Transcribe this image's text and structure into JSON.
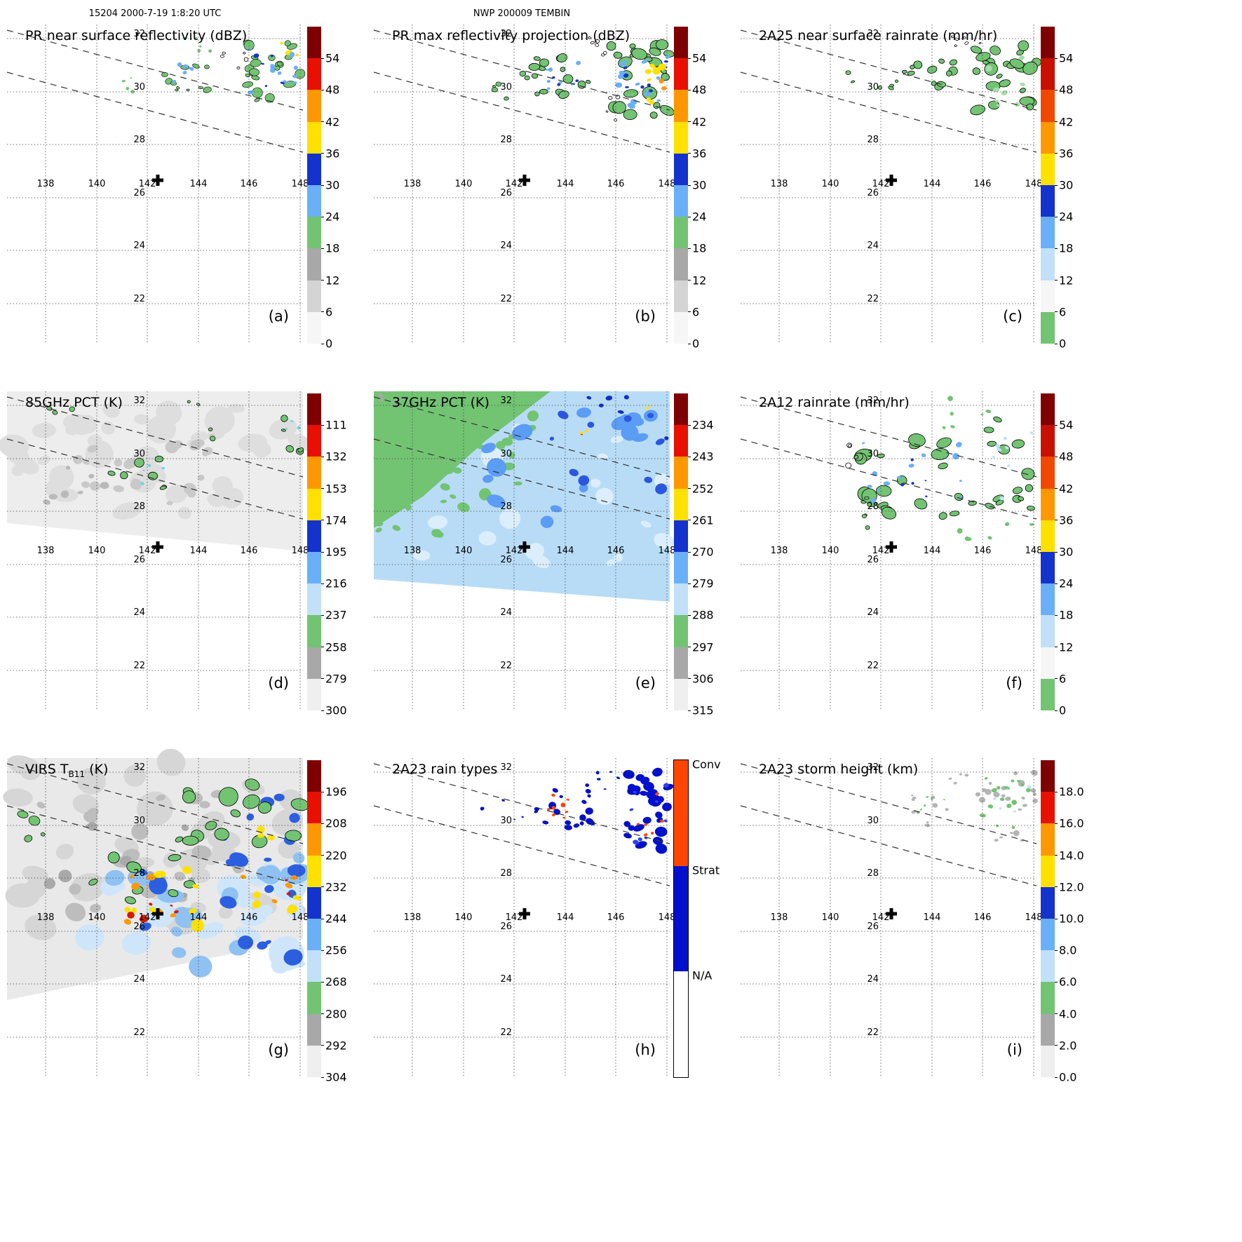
{
  "headers": {
    "left": "15204 2000-7-19 1:8:20 UTC",
    "center": "NWP 200009 TEMBIN"
  },
  "axis": {
    "lon_labels": [
      "138",
      "140",
      "142",
      "144",
      "146",
      "148"
    ],
    "lat_labels": [
      "32",
      "30",
      "28",
      "26",
      "24",
      "22"
    ]
  },
  "colors": {
    "green": "#72c472",
    "light_blue": "#6ab0f8",
    "pale_blue": "#c2e0f8",
    "blue": "#1433cc",
    "yellow": "#ffe100",
    "orange": "#ff9800",
    "red": "#e81000",
    "dark_red": "#7f0000",
    "gray": "#a8a8a8",
    "light_gray": "#d4d4d4",
    "conv": "#ff4500",
    "strat": "#0010cc"
  },
  "panels": [
    {
      "id": "a",
      "letter": "(a)",
      "title": "PR near surface reflectivity (dBZ)",
      "colorbar": {
        "ticks": [
          "54",
          "48",
          "42",
          "36",
          "30",
          "24",
          "18",
          "12",
          "6",
          "0"
        ],
        "colors": [
          "#7f0000",
          "#e81000",
          "#ff9800",
          "#ffe100",
          "#1433cc",
          "#6ab0f8",
          "#72c472",
          "#a8a8a8",
          "#d4d4d4",
          "#f6f6f6"
        ]
      }
    },
    {
      "id": "b",
      "letter": "(b)",
      "title": "PR max reflectivity projection (dBZ)",
      "colorbar": {
        "ticks": [
          "54",
          "48",
          "42",
          "36",
          "30",
          "24",
          "18",
          "12",
          "6",
          "0"
        ],
        "colors": [
          "#7f0000",
          "#e81000",
          "#ff9800",
          "#ffe100",
          "#1433cc",
          "#6ab0f8",
          "#72c472",
          "#a8a8a8",
          "#d4d4d4",
          "#f6f6f6"
        ]
      }
    },
    {
      "id": "c",
      "letter": "(c)",
      "title": "2A25 near surface rainrate (mm/hr)",
      "colorbar": {
        "ticks": [
          "54",
          "48",
          "42",
          "36",
          "30",
          "24",
          "18",
          "12",
          "6",
          "0"
        ],
        "colors": [
          "#7f0000",
          "#c81000",
          "#f04800",
          "#ff9800",
          "#ffe100",
          "#1433cc",
          "#6ab0f8",
          "#c2e0f8",
          "#f6f6f6",
          "#72c472"
        ]
      }
    },
    {
      "id": "d",
      "letter": "(d)",
      "title": "85GHz PCT (K)",
      "colorbar": {
        "ticks": [
          "111",
          "132",
          "153",
          "174",
          "195",
          "216",
          "237",
          "258",
          "279",
          "300"
        ],
        "colors": [
          "#7f0000",
          "#e81000",
          "#ff9800",
          "#ffe100",
          "#1433cc",
          "#6ab0f8",
          "#c2e0f8",
          "#72c472",
          "#a8a8a8",
          "#efefef"
        ]
      }
    },
    {
      "id": "e",
      "letter": "(e)",
      "title": "37GHz PCT (K)",
      "colorbar": {
        "ticks": [
          "234",
          "243",
          "252",
          "261",
          "270",
          "279",
          "288",
          "297",
          "306",
          "315"
        ],
        "colors": [
          "#7f0000",
          "#e81000",
          "#ff9800",
          "#ffe100",
          "#1433cc",
          "#6ab0f8",
          "#c2e0f8",
          "#72c472",
          "#a8a8a8",
          "#efefef"
        ]
      }
    },
    {
      "id": "f",
      "letter": "(f)",
      "title": "2A12 rainrate (mm/hr)",
      "colorbar": {
        "ticks": [
          "54",
          "48",
          "42",
          "36",
          "30",
          "24",
          "18",
          "12",
          "6",
          "0"
        ],
        "colors": [
          "#7f0000",
          "#c81000",
          "#f04800",
          "#ff9800",
          "#ffe100",
          "#1433cc",
          "#6ab0f8",
          "#c2e0f8",
          "#f6f6f6",
          "#72c472"
        ]
      }
    },
    {
      "id": "g",
      "letter": "(g)",
      "title": "VIRS TB11 (K)",
      "title_parts": {
        "pre": "VIRS T",
        "sub": "B11",
        "post": " (K)"
      },
      "colorbar": {
        "ticks": [
          "196",
          "208",
          "220",
          "232",
          "244",
          "256",
          "268",
          "280",
          "292",
          "304"
        ],
        "colors": [
          "#7f0000",
          "#e81000",
          "#ff9800",
          "#ffe100",
          "#1433cc",
          "#6ab0f8",
          "#c2e0f8",
          "#72c472",
          "#a8a8a8",
          "#efefef"
        ]
      }
    },
    {
      "id": "h",
      "letter": "(h)",
      "title": "2A23 rain types",
      "colorbar": {
        "categories": [
          {
            "label": "Conv",
            "color": "#ff4500"
          },
          {
            "label": "Strat",
            "color": "#0010cc"
          },
          {
            "label": "N/A",
            "color": "#ffffff"
          }
        ]
      }
    },
    {
      "id": "i",
      "letter": "(i)",
      "title": "2A23 storm height (km)",
      "colorbar": {
        "ticks": [
          "18.0",
          "16.0",
          "14.0",
          "12.0",
          "10.0",
          "8.0",
          "6.0",
          "4.0",
          "2.0",
          "0.0"
        ],
        "colors": [
          "#7f0000",
          "#e81000",
          "#ff9800",
          "#ffe100",
          "#1433cc",
          "#6ab0f8",
          "#c2e0f8",
          "#72c472",
          "#a8a8a8",
          "#efefef"
        ]
      }
    }
  ],
  "chart_data": {
    "type": "heatmap",
    "figure": "3x3 multi-panel TRMM satellite overpass maps of a NW Pacific tropical cyclone",
    "orbit_datetime": "15204 2000-7-19 1:8:20 UTC",
    "storm": "NWP 200009 TEMBIN",
    "geo": {
      "lon_gridlines": [
        138,
        140,
        142,
        144,
        146,
        148
      ],
      "lat_gridlines": [
        22,
        24,
        26,
        28,
        30,
        32
      ],
      "lon_range": [
        136.5,
        148.6
      ],
      "lat_range": [
        20.5,
        32.6
      ],
      "storm_center_marker": {
        "symbol": "+",
        "lon": 142.2,
        "lat": 26.6
      },
      "swath_edges": "two parallel dashed lines tilted ~14 deg, upper-left to lower-right across the top of every panel"
    },
    "panels": [
      {
        "id": "a",
        "title": "PR near surface reflectivity (dBZ)",
        "units": "dBZ",
        "colorbar_ticks": [
          54,
          48,
          42,
          36,
          30,
          24,
          18,
          12,
          6,
          0
        ],
        "features": "scattered PR rainbands 29.5-32N, 140.5-148.5E; green 18-24 dBZ areas with light-blue/blue 24-36 dBZ cells and small yellow 36-42 dBZ cores near 147.5E 31N"
      },
      {
        "id": "b",
        "title": "PR max reflectivity projection (dBZ)",
        "units": "dBZ",
        "colorbar_ticks": [
          54,
          48,
          42,
          36,
          30,
          24,
          18,
          12,
          6,
          0
        ],
        "features": "column-maximum view of same rainbands, larger contiguous echoes outlined in black, prominent yellow 36-42 dBZ cores near 147-148.5E 30.5-31N"
      },
      {
        "id": "c",
        "title": "2A25 near surface rainrate (mm/hr)",
        "units": "mm/hr",
        "colorbar_ticks": [
          54,
          48,
          42,
          36,
          30,
          24,
          18,
          12,
          6,
          0
        ],
        "features": "near-surface rain mostly 0-6 mm/hr (green) over the PR rainband areas, black outline contours"
      },
      {
        "id": "d",
        "title": "85GHz PCT (K)",
        "units": "K",
        "colorbar_ticks": [
          111,
          132,
          153,
          174,
          195,
          216,
          237,
          258,
          279,
          300
        ],
        "features": "wide TMI swath mostly 258-300 K (gray/white); small ice-scattering depressions 195-258 K (green/cyan, black-contoured) near 30N 141-143E and along 148E 30.5-31.5N"
      },
      {
        "id": "e",
        "title": "37GHz PCT (K)",
        "units": "K",
        "colorbar_ticks": [
          234,
          243,
          252,
          261,
          270,
          279,
          288,
          297,
          306,
          315
        ],
        "features": "swath with 288-297 K (green) to the northwest, 270-288 K (light blue) ocean background, 261-270 K (blue) patches in rainbands, isolated warm specks"
      },
      {
        "id": "f",
        "title": "2A12 rainrate (mm/hr)",
        "units": "mm/hr",
        "colorbar_ticks": [
          54,
          48,
          42,
          36,
          30,
          24,
          18,
          12,
          6,
          0
        ],
        "features": "broad TMI rain areas 0-6 mm/hr (green, black-contoured) across 26.5-31.5N 140-148.5E with embedded 6-24 mm/hr (blue) cells"
      },
      {
        "id": "g",
        "title": "VIRS TB11 (K)",
        "units": "K",
        "colorbar_ticks": [
          196,
          208,
          220,
          232,
          244,
          256,
          268,
          280,
          292,
          304
        ],
        "features": "11-micron brightness temperature: cold convective canopies 196-232 K (red/orange/yellow) near 141-144E 28-29N, extensive 232-268 K (blue/light blue) cloud shield, 268-280 K (green) mid cloud patches, 280-304 K gray clear areas"
      },
      {
        "id": "h",
        "title": "2A23 rain types",
        "units": "category",
        "colorbar_categories": [
          "Conv",
          "Strat",
          "N/A"
        ],
        "features": "rain classification: mostly stratiform (blue) areas along 30-31.5N with scattered convective (red-orange) pixels; N/A (white) elsewhere"
      },
      {
        "id": "i",
        "title": "2A23 storm height (km)",
        "units": "km",
        "colorbar_ticks": [
          18.0,
          16.0,
          14.0,
          12.0,
          10.0,
          8.0,
          6.0,
          4.0,
          2.0,
          0.0
        ],
        "features": "storm heights mostly 2-6 km (gray/green) with few 6-10 km (pale blue) pixels along the rainbands near 30-31.5N"
      }
    ]
  }
}
